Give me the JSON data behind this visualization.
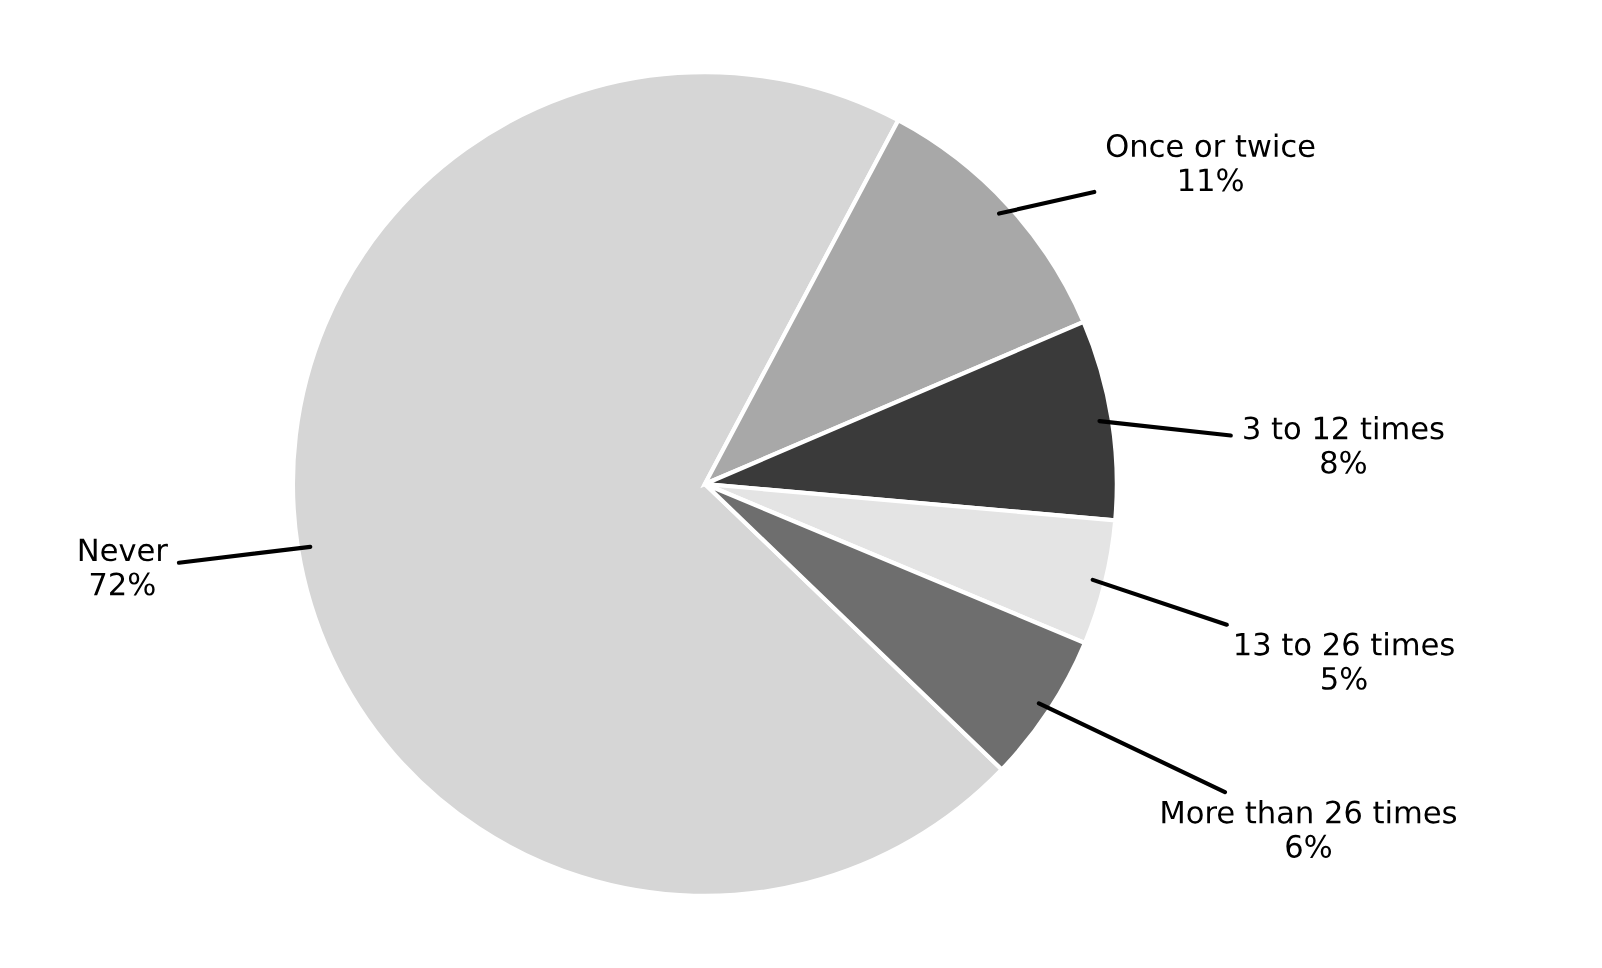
{
  "chart_data": {
    "type": "pie",
    "categories": [
      "Never",
      "Once or twice",
      "3 to 12 times",
      "13 to 26 times",
      "More than 26 times"
    ],
    "values": [
      72,
      11,
      8,
      5,
      6
    ],
    "value_labels": [
      "72%",
      "11%",
      "8%",
      "5%",
      "6%"
    ],
    "colors": [
      "#d6d6d6",
      "#a8a8a8",
      "#3a3a3a",
      "#e4e4e4",
      "#6e6e6e"
    ],
    "legend": false
  }
}
